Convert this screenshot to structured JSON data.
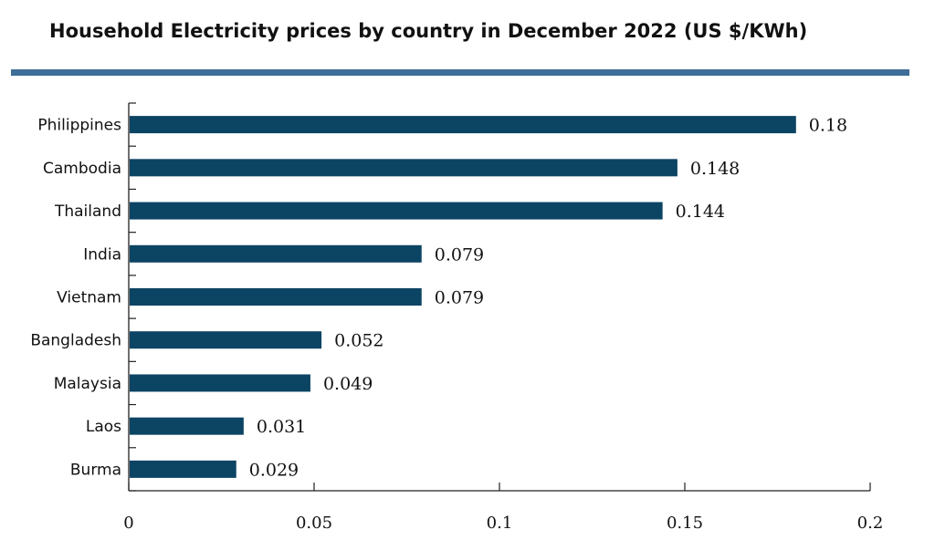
{
  "colors": {
    "bar": "#0c4464",
    "accent_rule": "#3f6e98",
    "axis": "#222222"
  },
  "chart_data": {
    "type": "bar",
    "orientation": "horizontal",
    "title": "Household Electricity prices by country in December 2022 (US $/KWh)",
    "categories": [
      "Philippines",
      "Cambodia",
      "Thailand",
      "India",
      "Vietnam",
      "Bangladesh",
      "Malaysia",
      "Laos",
      "Burma"
    ],
    "values": [
      0.18,
      0.148,
      0.144,
      0.079,
      0.079,
      0.052,
      0.049,
      0.031,
      0.029
    ],
    "value_labels": [
      "0.18",
      "0.148",
      "0.144",
      "0.079",
      "0.079",
      "0.052",
      "0.049",
      "0.031",
      "0.029"
    ],
    "xlim": [
      0,
      0.2
    ],
    "x_ticks": [
      0,
      0.05,
      0.1,
      0.15,
      0.2
    ],
    "x_tick_labels": [
      "0",
      "0.05",
      "0.1",
      "0.15",
      "0.2"
    ],
    "grid": false,
    "legend": "none"
  }
}
